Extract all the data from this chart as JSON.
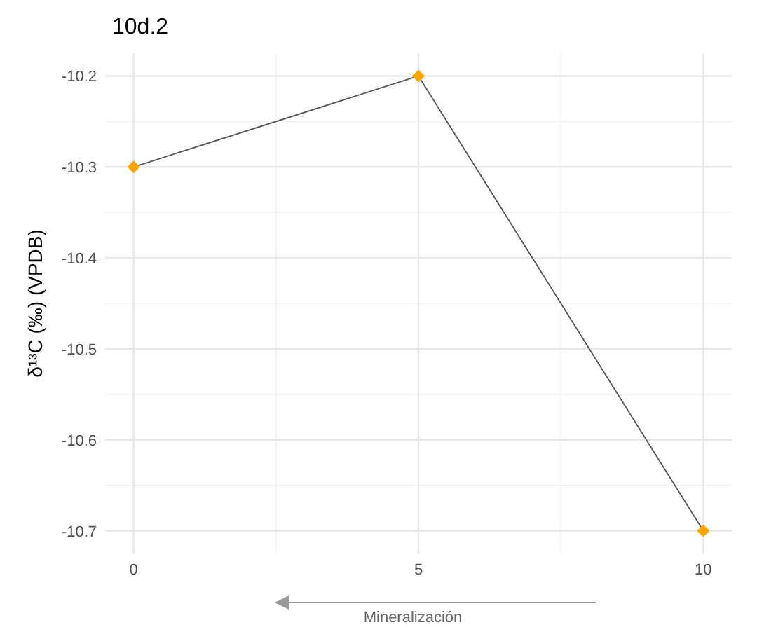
{
  "chart_data": {
    "type": "line",
    "title": "10d.2",
    "xlabel": "Mineralización",
    "ylabel": "δ¹³C (‰) (VPDB)",
    "x": [
      0,
      5,
      10
    ],
    "series": [
      {
        "color": "#555555",
        "marker": "none",
        "values": [
          -10.3,
          -10.2,
          -10.7
        ]
      },
      {
        "type": "scatter",
        "color": "#ffa500",
        "marker": "diamond",
        "values": [
          -10.3,
          -10.2,
          -10.7
        ]
      }
    ],
    "xlim": [
      -0.5,
      10.5
    ],
    "xticks": [
      0,
      5,
      10
    ],
    "ylim": [
      -10.725,
      -10.175
    ],
    "yticks": [
      -10.2,
      -10.3,
      -10.4,
      -10.5,
      -10.6,
      -10.7
    ],
    "grid": true,
    "line_style": "solid"
  }
}
